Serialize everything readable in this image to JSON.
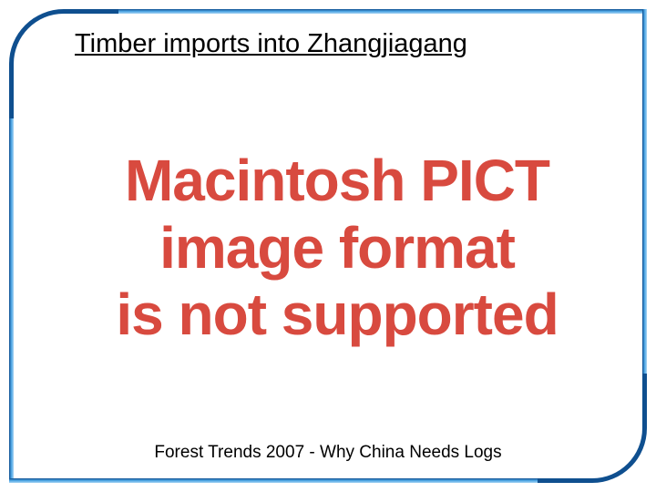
{
  "slide": {
    "title": "Timber imports into Zhangjiagang",
    "caption": "Forest Trends 2007 - Why China Needs Logs"
  },
  "error": {
    "line1": "Macintosh PICT",
    "line2": "image format",
    "line3": "is not supported",
    "color": "#d84a3f",
    "fontsize": 64
  },
  "frame": {
    "border_color_dark": "#0a3a6b",
    "border_color_inner": "#3a8fd6",
    "gradient_start": "#0f4f8f",
    "gradient_mid": "#4ea7e6",
    "gradient_end": "#a8d4f2"
  }
}
